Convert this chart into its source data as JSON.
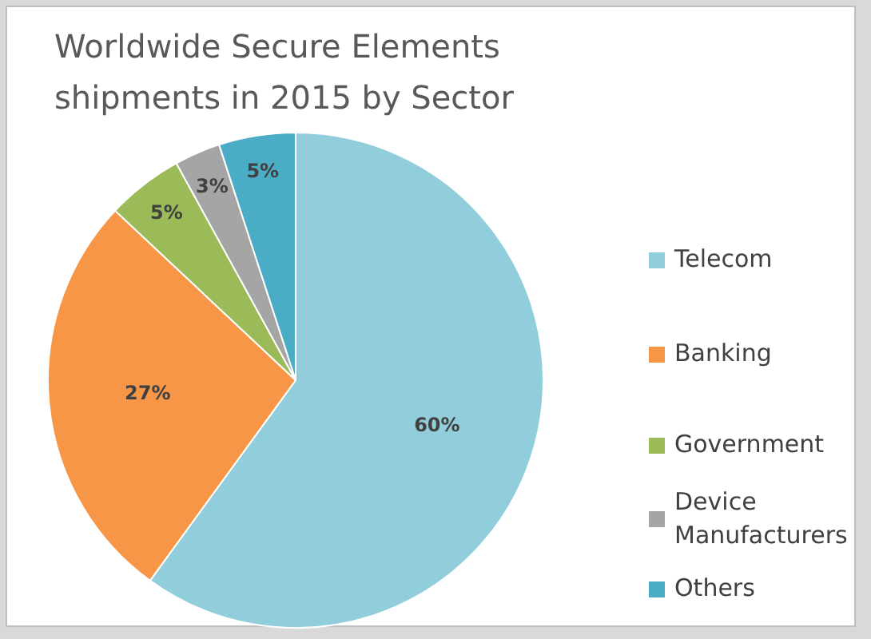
{
  "chart_data": {
    "type": "pie",
    "title": "Worldwide Secure Elements\nshipments in 2015 by Sector",
    "categories": [
      "Telecom",
      "Banking",
      "Government",
      "Device\nManufacturers",
      "Others"
    ],
    "values": [
      60,
      27,
      5,
      3,
      5
    ],
    "value_labels": [
      "60%",
      "27%",
      "5%",
      "3%",
      "5%"
    ],
    "colors": [
      "#92cddc",
      "#f79646",
      "#9bbb59",
      "#a5a5a5",
      "#4bacc6"
    ],
    "legend": "right"
  }
}
